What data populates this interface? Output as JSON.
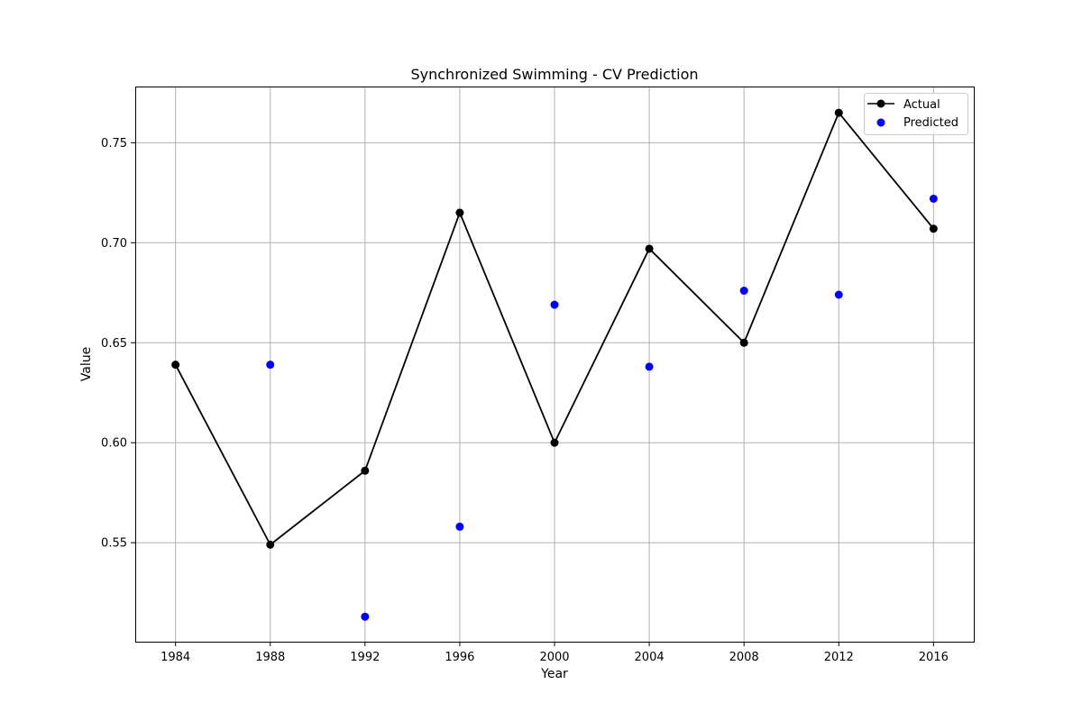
{
  "chart_data": {
    "type": "line",
    "title": "Synchronized Swimming - CV Prediction",
    "xlabel": "Year",
    "ylabel": "Value",
    "x": [
      1984,
      1988,
      1992,
      1996,
      2000,
      2004,
      2008,
      2012,
      2016
    ],
    "x_ticks": [
      "1984",
      "1988",
      "1992",
      "1996",
      "2000",
      "2004",
      "2008",
      "2012",
      "2016"
    ],
    "y_ticks": [
      "0.55",
      "0.60",
      "0.65",
      "0.70",
      "0.75"
    ],
    "xlim": [
      1982.3,
      2017.7
    ],
    "ylim": [
      0.5005,
      0.7781
    ],
    "grid": true,
    "legend_position": "top-right",
    "series": [
      {
        "name": "Actual",
        "style": "line-with-markers",
        "color": "#000000",
        "x": [
          1984,
          1988,
          1992,
          1996,
          2000,
          2004,
          2008,
          2012,
          2016
        ],
        "values": [
          0.639,
          0.549,
          0.586,
          0.715,
          0.6,
          0.697,
          0.65,
          0.765,
          0.707
        ]
      },
      {
        "name": "Predicted",
        "style": "scatter",
        "color": "#0000ff",
        "x": [
          1988,
          1992,
          1996,
          2000,
          2004,
          2008,
          2012,
          2016
        ],
        "values": [
          0.639,
          0.513,
          0.558,
          0.669,
          0.638,
          0.676,
          0.674,
          0.722
        ]
      }
    ]
  }
}
